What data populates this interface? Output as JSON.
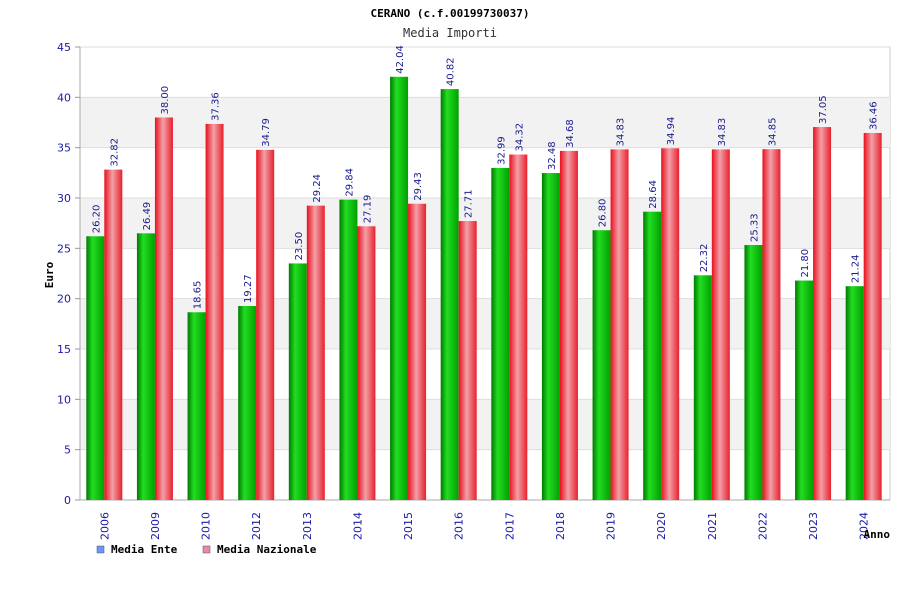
{
  "chart_data": {
    "type": "bar",
    "title": "CERANO (c.f.00199730037)",
    "subtitle": "Media Importi",
    "ylabel": "Euro",
    "xlabel": "Anno",
    "ylim": [
      0,
      45
    ],
    "yticks": [
      0,
      5,
      10,
      15,
      20,
      25,
      30,
      35,
      40,
      45
    ],
    "grid": "horizontal",
    "legend_position": "bottom-left",
    "categories": [
      "2006",
      "2009",
      "2010",
      "2012",
      "2013",
      "2014",
      "2015",
      "2016",
      "2017",
      "2018",
      "2019",
      "2020",
      "2021",
      "2022",
      "2023",
      "2024"
    ],
    "series": [
      {
        "name": "Media Ente",
        "color": "#00b400",
        "legend_color": "#6699ff",
        "values": [
          26.2,
          26.49,
          18.65,
          19.27,
          23.5,
          29.84,
          42.04,
          40.82,
          32.99,
          32.48,
          26.8,
          28.64,
          22.32,
          25.33,
          21.8,
          21.24
        ],
        "labels": [
          "26.20",
          "26.49",
          "18.65",
          "19.27",
          "23.50",
          "29.84",
          "42.04",
          "40.82",
          "32.99",
          "32.48",
          "26.80",
          "28.64",
          "22.32",
          "25.33",
          "21.80",
          "21.24"
        ]
      },
      {
        "name": "Media Nazionale",
        "color": "#e8303a",
        "legend_color": "#e88aa8",
        "values": [
          32.82,
          38.0,
          37.36,
          34.79,
          29.24,
          27.19,
          29.43,
          27.71,
          34.32,
          34.68,
          34.83,
          34.94,
          34.83,
          34.85,
          37.05,
          36.46
        ],
        "labels": [
          "32.82",
          "38.00",
          "37.36",
          "34.79",
          "29.24",
          "27.19",
          "29.43",
          "27.71",
          "34.32",
          "34.68",
          "34.83",
          "34.94",
          "34.83",
          "34.85",
          "37.05",
          "36.46"
        ]
      }
    ]
  }
}
